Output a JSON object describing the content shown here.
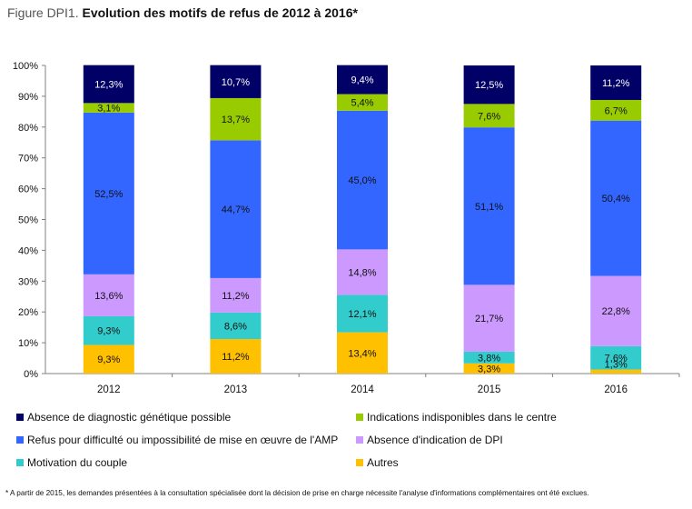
{
  "title": {
    "prefix": "Figure DPI1.",
    "text": "Evolution des motifs de refus de 2012 à 2016*"
  },
  "footnote": "* A partir de 2015, les demandes présentées à la consultation spécialisée dont la décision de prise en charge nécessite l'analyse d'informations complémentaires ont été exclues.",
  "chart_data": {
    "type": "bar",
    "stacked": true,
    "percent": true,
    "categories": [
      "2012",
      "2013",
      "2014",
      "2015",
      "2016"
    ],
    "ylim": [
      0,
      100
    ],
    "yticks": [
      "0%",
      "10%",
      "20%",
      "30%",
      "40%",
      "50%",
      "60%",
      "70%",
      "80%",
      "90%",
      "100%"
    ],
    "grid": false,
    "legend_position": "bottom",
    "series": [
      {
        "name": "Autres",
        "color": "#FFC000",
        "values": [
          9.3,
          11.2,
          13.4,
          3.3,
          1.3
        ],
        "labels": [
          "9,3%",
          "11,2%",
          "13,4%",
          "3,3%",
          "1,3%"
        ]
      },
      {
        "name": "Motivation du couple",
        "color": "#33CCCC",
        "values": [
          9.3,
          8.6,
          12.1,
          3.8,
          7.6
        ],
        "labels": [
          "9,3%",
          "8,6%",
          "12,1%",
          "3,8%",
          "7,6%"
        ]
      },
      {
        "name": "Absence d'indication de DPI",
        "color": "#CC99FF",
        "values": [
          13.6,
          11.2,
          14.8,
          21.7,
          22.8
        ],
        "labels": [
          "13,6%",
          "11,2%",
          "14,8%",
          "21,7%",
          "22,8%"
        ]
      },
      {
        "name": "Refus pour difficulté ou impossibilité de mise en œuvre de l'AMP",
        "color": "#3366FF",
        "values": [
          52.5,
          44.7,
          45.0,
          51.1,
          50.4
        ],
        "labels": [
          "52,5%",
          "44,7%",
          "45,0%",
          "51,1%",
          "50,4%"
        ]
      },
      {
        "name": "Indications indisponibles dans le centre",
        "color": "#99CC00",
        "values": [
          3.1,
          13.7,
          5.4,
          7.6,
          6.7
        ],
        "labels": [
          "3,1%",
          "13,7%",
          "5,4%",
          "7,6%",
          "6,7%"
        ]
      },
      {
        "name": "Absence de diagnostic génétique possible",
        "color": "#000066",
        "values": [
          12.3,
          10.7,
          9.4,
          12.5,
          11.2
        ],
        "labels": [
          "12,3%",
          "10,7%",
          "9,4%",
          "12,5%",
          "11,2%"
        ]
      }
    ]
  },
  "legend": [
    {
      "label": "Absence de diagnostic génétique possible",
      "color": "#000066"
    },
    {
      "label": "Indications indisponibles dans le centre",
      "color": "#99CC00"
    },
    {
      "label": "Refus pour difficulté ou impossibilité de mise en œuvre de l'AMP",
      "color": "#3366FF"
    },
    {
      "label": "Absence d'indication de DPI",
      "color": "#CC99FF"
    },
    {
      "label": "Motivation du couple",
      "color": "#33CCCC"
    },
    {
      "label": "Autres",
      "color": "#FFC000"
    }
  ]
}
